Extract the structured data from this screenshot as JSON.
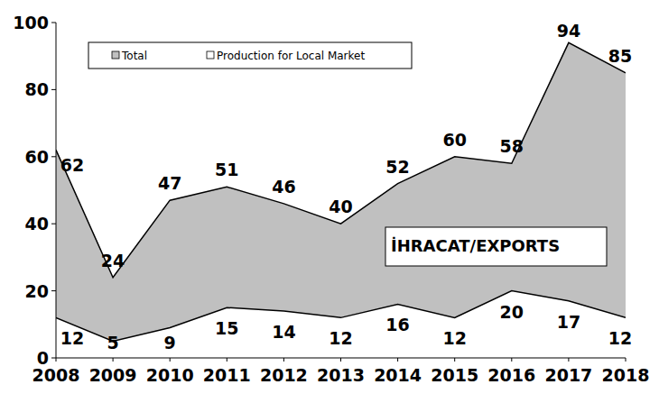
{
  "chart_data": {
    "type": "area",
    "categories": [
      "2008",
      "2009",
      "2010",
      "2011",
      "2012",
      "2013",
      "2014",
      "2015",
      "2016",
      "2017",
      "2018"
    ],
    "series": [
      {
        "name": "Total",
        "color": "#c0c0c0",
        "values": [
          62,
          24,
          47,
          51,
          46,
          40,
          52,
          60,
          58,
          94,
          85
        ]
      },
      {
        "name": "Production for Local Market",
        "color": "#ffffff",
        "values": [
          12,
          5,
          9,
          15,
          14,
          12,
          16,
          12,
          20,
          17,
          12
        ]
      }
    ],
    "annotations": [
      "İHRACAT/EXPORTS"
    ],
    "ylim": [
      0,
      100
    ],
    "yticks": [
      0,
      20,
      40,
      60,
      80,
      100
    ],
    "stacked": false,
    "data_labels": true,
    "legend": "top",
    "grid": false
  }
}
